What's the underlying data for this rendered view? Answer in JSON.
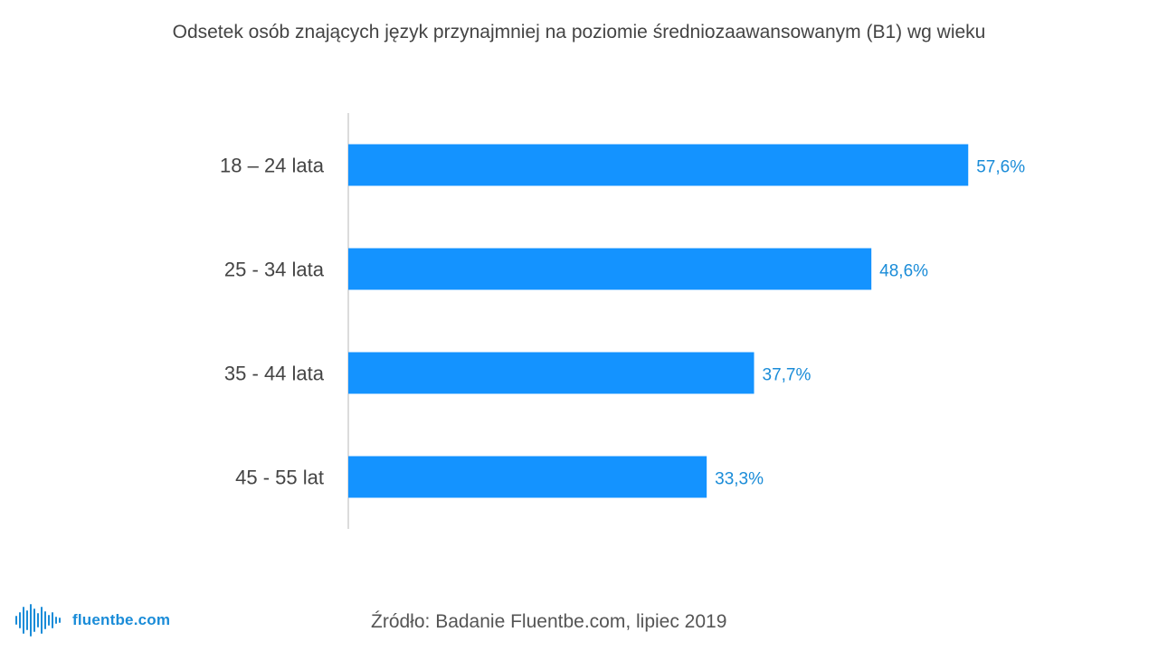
{
  "colors": {
    "bar": "#1493ff",
    "value_label": "#1a8cd8",
    "axis": "#d0d0d0",
    "category_label": "#444444"
  },
  "chart_data": {
    "type": "bar",
    "orientation": "horizontal",
    "title": "Odsetek osób znających język przynajmniej na poziomie średniozaawansowanym (B1) wg wieku",
    "categories": [
      "18 – 24 lata",
      "25 - 34 lata",
      "35 - 44 lata",
      "45 - 55 lat"
    ],
    "values": [
      57.6,
      48.6,
      37.7,
      33.3
    ],
    "value_labels": [
      "57,6%",
      "48,6%",
      "37,7%",
      "33,3%"
    ],
    "xlabel": "",
    "ylabel": "",
    "xlim": [
      0,
      58
    ]
  },
  "footer": {
    "source": "Źródło: Badanie Fluentbe.com, lipiec 2019",
    "brand_name": "fluentbe.com",
    "logo_icon": "sound-wave-icon"
  }
}
